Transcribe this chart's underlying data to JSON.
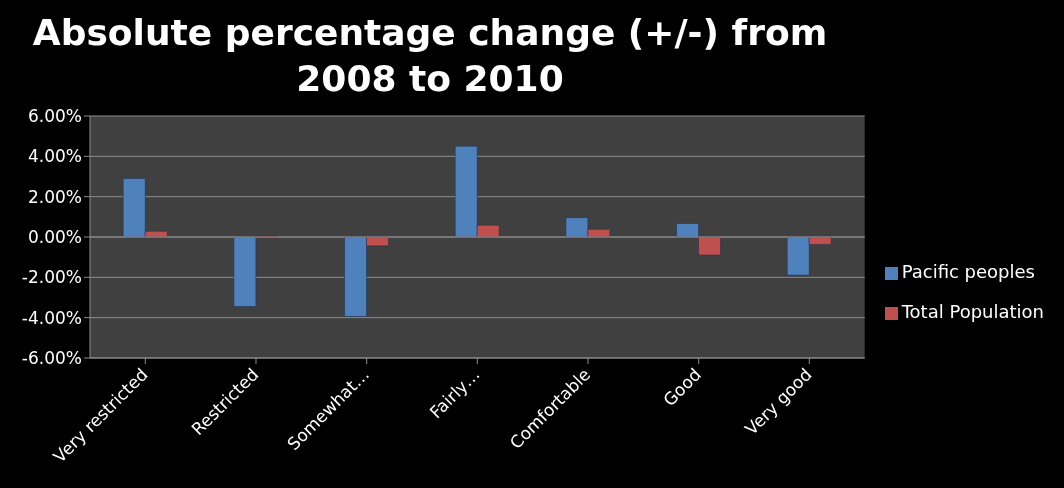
{
  "chart_data": {
    "type": "bar",
    "title": "Absolute percentage change (+/-) from 2008 to 2010",
    "categories": [
      "Very restricted",
      "Restricted",
      "Somewhat…",
      "Fairly…",
      "Comfortable",
      "Good",
      "Very good"
    ],
    "series": [
      {
        "name": "Pacific peoples",
        "color": "#4f81bd",
        "values": [
          2.9,
          -3.45,
          -3.94,
          4.5,
          0.96,
          0.67,
          -1.89
        ]
      },
      {
        "name": "Total Population",
        "color": "#c0504d",
        "values": [
          0.28,
          0.05,
          -0.44,
          0.58,
          0.38,
          -0.89,
          -0.37
        ]
      }
    ],
    "ylim": [
      -6,
      6
    ],
    "yticks": [
      {
        "value": -6,
        "label": "-6.00%"
      },
      {
        "value": -4,
        "label": "-4.00%"
      },
      {
        "value": -2,
        "label": "-2.00%"
      },
      {
        "value": 0,
        "label": "0.00%"
      },
      {
        "value": 2,
        "label": "2.00%"
      },
      {
        "value": 4,
        "label": "4.00%"
      },
      {
        "value": 6,
        "label": "6.00%"
      }
    ],
    "grid": "y",
    "legend": "right"
  }
}
